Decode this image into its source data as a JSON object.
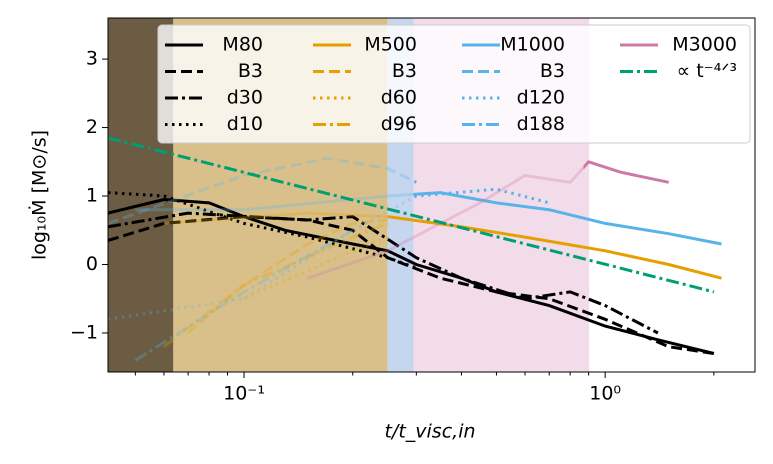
{
  "chart_data": {
    "type": "line",
    "xlabel": "t/t_visc,in",
    "ylabel": "log₁₀Ṁ [M⊙/s]",
    "xscale": "log",
    "xlim": [
      0.042,
      2.6
    ],
    "ylim": [
      -1.57,
      3.6
    ],
    "xticks": [
      {
        "value": 0.1,
        "label": "10⁻¹"
      },
      {
        "value": 1,
        "label": "10⁰"
      }
    ],
    "xminorticks": [
      0.05,
      0.06,
      0.07,
      0.08,
      0.09,
      0.2,
      0.3,
      0.4,
      0.5,
      0.6,
      0.7,
      0.8,
      0.9,
      2
    ],
    "yticks": [
      {
        "value": -1,
        "label": "−1"
      },
      0,
      1,
      2,
      3
    ],
    "legend": "upper right",
    "regions": [
      {
        "x0": 0.042,
        "x1": 0.0637,
        "color": "#6b5c43"
      },
      {
        "x0": 0.0637,
        "x1": 0.25,
        "color": "#d9c08a"
      },
      {
        "x0": 0.25,
        "x1": 0.295,
        "color": "#c5d6ee"
      },
      {
        "x0": 0.295,
        "x1": 0.903,
        "color": "#f3dcea"
      }
    ],
    "series": [
      {
        "name": "M80",
        "color": "#000000",
        "dash": "solid",
        "fade_before": 0.042,
        "x": [
          0.042,
          0.06,
          0.08,
          0.1,
          0.13,
          0.2,
          0.25,
          0.3,
          0.4,
          0.5,
          0.7,
          1.0,
          1.4,
          2.0
        ],
        "values": [
          0.75,
          0.95,
          0.9,
          0.7,
          0.5,
          0.3,
          0.2,
          0.0,
          -0.2,
          -0.4,
          -0.6,
          -0.9,
          -1.1,
          -1.3
        ]
      },
      {
        "name": "B3",
        "color": "#000000",
        "dash": "dashed",
        "fade_before": 0.042,
        "x": [
          0.042,
          0.06,
          0.1,
          0.15,
          0.2,
          0.25,
          0.35,
          0.5,
          0.7,
          1.0,
          1.5,
          2.0
        ],
        "values": [
          0.35,
          0.6,
          0.7,
          0.65,
          0.5,
          0.1,
          -0.2,
          -0.4,
          -0.5,
          -0.8,
          -1.2,
          -1.3
        ]
      },
      {
        "name": "d30",
        "color": "#000000",
        "dash": "dashdot",
        "fade_before": 0.042,
        "x": [
          0.042,
          0.07,
          0.15,
          0.2,
          0.3,
          0.4,
          0.6,
          0.8,
          1.0,
          1.4
        ],
        "values": [
          0.55,
          0.75,
          0.65,
          0.7,
          0.1,
          -0.2,
          -0.5,
          -0.4,
          -0.6,
          -1.0
        ]
      },
      {
        "name": "d10",
        "color": "#000000",
        "dash": "dotted",
        "fade_before": 0.042,
        "x": [
          0.042,
          0.06,
          0.1,
          0.15,
          0.25,
          0.3
        ],
        "values": [
          1.05,
          1.0,
          0.6,
          0.4,
          0.1,
          -0.05
        ]
      },
      {
        "name": "M500",
        "color": "#e69f00",
        "dash": "solid",
        "fade_before": 0.25,
        "x": [
          0.06,
          0.15,
          0.25,
          0.4,
          0.6,
          1.0,
          1.5,
          2.1
        ],
        "values": [
          0.6,
          0.75,
          0.7,
          0.55,
          0.4,
          0.2,
          0.0,
          -0.2
        ]
      },
      {
        "name": "B3",
        "color": "#e69f00",
        "dash": "dashed",
        "fade_before": 0.25,
        "x": [
          0.07,
          0.1,
          0.15,
          0.2,
          0.25
        ],
        "values": [
          -1.0,
          -0.3,
          0.3,
          0.6,
          0.65
        ]
      },
      {
        "name": "d60",
        "color": "#e69f00",
        "dash": "dotted",
        "fade_before": 0.25,
        "x": [
          0.1,
          0.2,
          0.25
        ],
        "values": [
          -0.5,
          0.2,
          0.4
        ]
      },
      {
        "name": "d96",
        "color": "#e69f00",
        "dash": "dashdot",
        "fade_before": 0.25,
        "x": [
          0.06,
          0.1,
          0.2,
          0.25
        ],
        "values": [
          -1.2,
          -0.3,
          0.4,
          0.6
        ]
      },
      {
        "name": "M1000",
        "color": "#56b4e9",
        "dash": "solid",
        "fade_before": 0.295,
        "x": [
          0.05,
          0.1,
          0.25,
          0.35,
          0.5,
          0.7,
          1.0,
          1.5,
          2.1
        ],
        "values": [
          0.8,
          0.8,
          1.0,
          1.05,
          0.9,
          0.8,
          0.6,
          0.45,
          0.3
        ]
      },
      {
        "name": "B3",
        "color": "#56b4e9",
        "dash": "dashed",
        "fade_before": 0.295,
        "x": [
          0.042,
          0.1,
          0.17,
          0.25,
          0.3
        ],
        "values": [
          0.6,
          1.3,
          1.55,
          1.4,
          1.2
        ]
      },
      {
        "name": "d120",
        "color": "#56b4e9",
        "dash": "dotted",
        "fade_before": 0.295,
        "x": [
          0.042,
          0.1,
          0.2,
          0.3,
          0.5,
          0.7
        ],
        "values": [
          -0.8,
          -0.5,
          0.5,
          1.0,
          1.1,
          0.9
        ]
      },
      {
        "name": "d188",
        "color": "#56b4e9",
        "dash": "dashdot",
        "fade_before": 0.295,
        "x": [
          0.05,
          0.1,
          0.2
        ],
        "values": [
          -1.4,
          -0.4,
          0.5
        ]
      },
      {
        "name": "M3000",
        "color": "#cc79a7",
        "dash": "solid",
        "fade_before": 0.87,
        "x": [
          0.15,
          0.25,
          0.45,
          0.6,
          0.8,
          0.9,
          1.1,
          1.5
        ],
        "values": [
          -0.2,
          0.2,
          0.9,
          1.3,
          1.2,
          1.5,
          1.35,
          1.2
        ]
      },
      {
        "name": "∝ t⁻⁴ᐟ³",
        "color": "#009e73",
        "dash": "dashdot",
        "fade_before": 0.042,
        "x": [
          0.042,
          2.0
        ],
        "values": [
          1.85,
          -0.4
        ]
      }
    ]
  }
}
